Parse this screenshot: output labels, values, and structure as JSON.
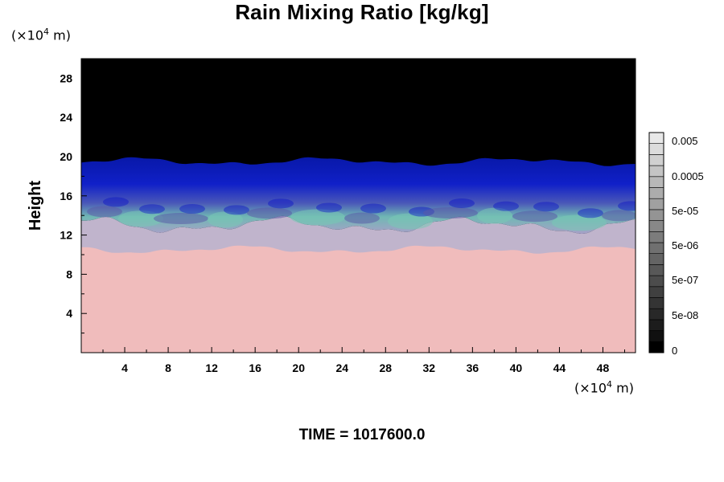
{
  "chart_data": {
    "type": "heatmap",
    "title": "Rain Mixing Ratio [kg/kg]",
    "ylabel": "Height",
    "xlabel": "",
    "x_unit": {
      "base": "(×10",
      "exp": "4",
      "tail": " m)"
    },
    "y_unit": {
      "base": "(×10",
      "exp": "4",
      "tail": " m)"
    },
    "xlim": [
      0,
      51
    ],
    "ylim": [
      0,
      30
    ],
    "x_ticks": [
      4,
      8,
      12,
      16,
      20,
      24,
      28,
      32,
      36,
      40,
      44,
      48
    ],
    "y_ticks": [
      4,
      8,
      12,
      16,
      20,
      24,
      28
    ],
    "layers": {
      "surface_zone_top": 11,
      "transition_top": 13,
      "cloud_top": 19.5
    },
    "colorbar": {
      "labels": [
        "0.005",
        "0.0005",
        "5e-05",
        "5e-06",
        "5e-07",
        "5e-08",
        "0"
      ],
      "shades": [
        "#000000",
        "#101010",
        "#1c1c1c",
        "#282828",
        "#343434",
        "#404040",
        "#4c4c4c",
        "#585858",
        "#646464",
        "#707070",
        "#7c7c7c",
        "#888888",
        "#949494",
        "#a0a0a0",
        "#acacac",
        "#b8b8b8",
        "#c4c4c4",
        "#d0d0d0",
        "#dcdcdc",
        "#e8e8e8"
      ]
    },
    "colors": {
      "upper": "#000000",
      "cloud": "#0a14c8",
      "mid_purple": "#5a5aa8",
      "mid_teal": "#78c8b4",
      "lower": "#f0bcbc",
      "transition": "#c0b4cc"
    }
  },
  "footer": {
    "time_label": "TIME = 1017600.0"
  }
}
